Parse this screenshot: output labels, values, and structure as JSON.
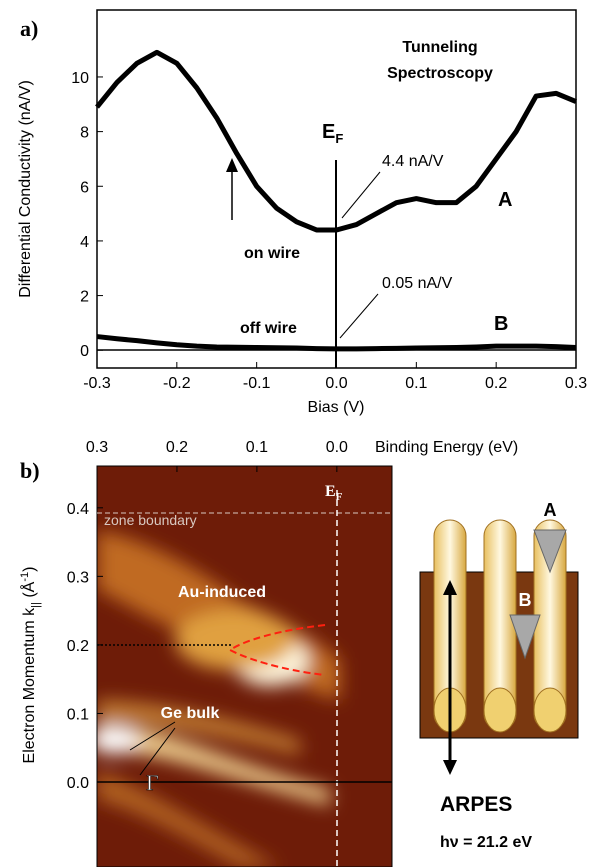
{
  "chart_data": [
    {
      "type": "line",
      "panel_label": "a)",
      "title_lines": [
        "Tunneling",
        "Spectroscopy"
      ],
      "x_label": "Bias (V)",
      "y_label": "Differential Conductivity (nA/V)",
      "x": [
        -0.3,
        -0.275,
        -0.25,
        -0.225,
        -0.2,
        -0.175,
        -0.15,
        -0.125,
        -0.1,
        -0.075,
        -0.05,
        -0.025,
        0,
        0.025,
        0.05,
        0.075,
        0.1,
        0.125,
        0.15,
        0.175,
        0.2,
        0.225,
        0.25,
        0.275,
        0.3
      ],
      "series": [
        {
          "name": "A",
          "color": "#000000",
          "values": [
            8.9,
            9.8,
            10.5,
            10.9,
            10.5,
            9.6,
            8.5,
            7.2,
            6.0,
            5.2,
            4.7,
            4.4,
            4.4,
            4.6,
            5.0,
            5.4,
            5.55,
            5.4,
            5.4,
            6.0,
            7.0,
            8.0,
            9.3,
            9.4,
            9.1
          ]
        },
        {
          "name": "B",
          "color": "#000000",
          "values": [
            0.5,
            0.42,
            0.35,
            0.27,
            0.2,
            0.15,
            0.12,
            0.11,
            0.1,
            0.09,
            0.08,
            0.06,
            0.05,
            0.05,
            0.06,
            0.07,
            0.08,
            0.09,
            0.1,
            0.12,
            0.15,
            0.15,
            0.15,
            0.13,
            0.1
          ]
        }
      ],
      "xlim": [
        -0.3,
        0.3
      ],
      "xticks": [
        -0.3,
        -0.2,
        -0.1,
        {
          "value": 0,
          "label": "0.0"
        },
        0.1,
        0.2,
        0.3
      ],
      "ylim": [
        -0.65,
        12.45
      ],
      "yticks": [
        0,
        2,
        4,
        6,
        8,
        10
      ],
      "annotations": {
        "ef_main": "E",
        "ef_sub": "F",
        "on_value": "4.4 nA/V",
        "off_value": "0.05 nA/V",
        "on": "on wire",
        "off": "off wire"
      }
    },
    {
      "type": "heatmap",
      "panel_label": "b)",
      "x_label": "Binding Energy (eV)",
      "y_label_parts": [
        "Electron Momentum k",
        "||",
        " (Å",
        "-1",
        ")"
      ],
      "xlim": [
        0.3,
        -0.069
      ],
      "xticks": [
        0.3,
        0.2,
        0.1,
        {
          "value": 0,
          "label": "0.0"
        }
      ],
      "ylim": [
        -0.124,
        0.461
      ],
      "yticks": [
        {
          "value": 0,
          "label": "0.0"
        },
        0.1,
        0.2,
        0.3,
        0.4
      ],
      "annotations": {
        "ef_main": "E",
        "ef_sub": "F",
        "zone": "zone boundary",
        "au": "Au-induced",
        "ge": "Ge bulk",
        "gamma": "Γ"
      },
      "diagram": {
        "a": "A",
        "b": "B",
        "method": "ARPES",
        "photon": "hν = 21.2 eV"
      }
    }
  ]
}
